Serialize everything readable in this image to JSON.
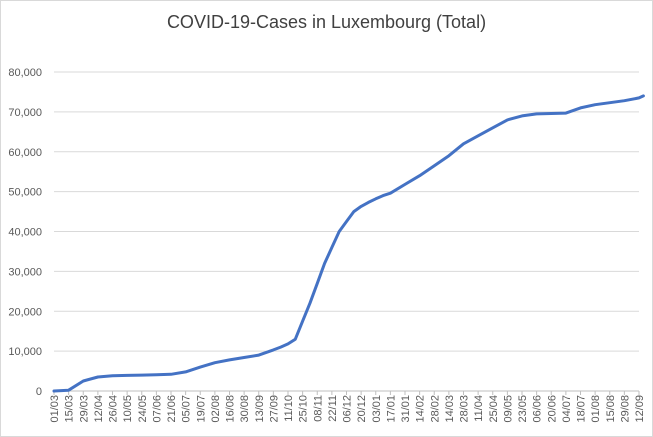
{
  "chart_data": {
    "type": "line",
    "title": "COVID-19-Cases in Luxembourg (Total)",
    "xlabel": "",
    "ylabel": "",
    "ylim": [
      0,
      80000
    ],
    "grid": true,
    "legend": "none",
    "y_ticks": [
      "0",
      "10,000",
      "20,000",
      "30,000",
      "40,000",
      "50,000",
      "60,000",
      "70,000",
      "80,000"
    ],
    "x_tick_labels": [
      "01/03",
      "15/03",
      "29/03",
      "12/04",
      "26/04",
      "10/05",
      "24/05",
      "07/06",
      "21/06",
      "05/07",
      "19/07",
      "02/08",
      "16/08",
      "30/08",
      "13/09",
      "27/09",
      "11/10",
      "25/10",
      "08/11",
      "22/11",
      "06/12",
      "20/12",
      "03/01",
      "17/01",
      "31/01",
      "14/02",
      "28/02",
      "14/03",
      "28/03",
      "11/04",
      "25/04",
      "09/05",
      "23/05",
      "06/06",
      "20/06",
      "04/07",
      "18/07",
      "01/08",
      "15/08",
      "29/08",
      "12/09"
    ],
    "series": [
      {
        "color": "#4472c4",
        "x": [
          0,
          1,
          2,
          3,
          4,
          5,
          6,
          7,
          8,
          9,
          10,
          11,
          12,
          13,
          14,
          15,
          15.5,
          16,
          16.5,
          17,
          17.5,
          18,
          18.5,
          19,
          19.5,
          20,
          20.5,
          21,
          21.5,
          22,
          22.5,
          23,
          24,
          25,
          26,
          27,
          28,
          29,
          30,
          31,
          32,
          33,
          34,
          35,
          36,
          37,
          38,
          39,
          40,
          40.3
        ],
        "y": [
          0,
          200,
          2500,
          3500,
          3800,
          3900,
          4000,
          4100,
          4200,
          4800,
          6000,
          7100,
          7800,
          8400,
          9000,
          10300,
          11000,
          11800,
          13000,
          17500,
          22000,
          27000,
          32000,
          36000,
          40000,
          42500,
          45000,
          46300,
          47300,
          48200,
          49000,
          49600,
          51800,
          54000,
          56500,
          59000,
          62000,
          64000,
          66000,
          68000,
          69000,
          69500,
          69600,
          69700,
          71000,
          71800,
          72300,
          72800,
          73500,
          74000
        ]
      }
    ]
  }
}
